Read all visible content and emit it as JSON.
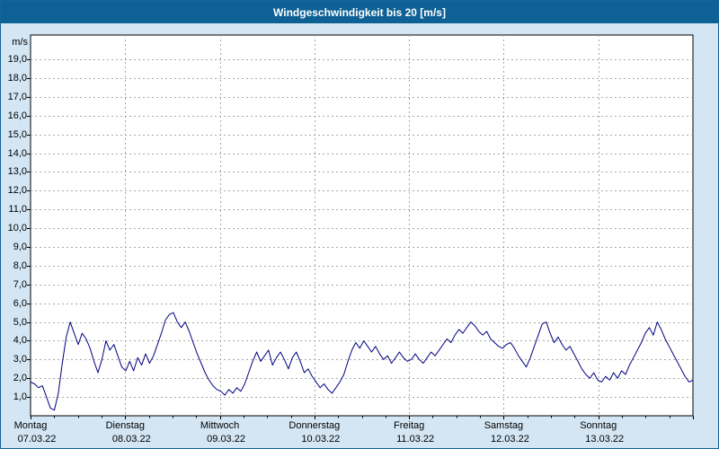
{
  "title": "Windgeschwindigkeit bis 20 [m/s]",
  "colors": {
    "titlebar_bg": "#0e6195",
    "page_bg": "#d4e6f4",
    "frame": "#17639b",
    "plot_bg": "#ffffff",
    "plot_border": "#000000",
    "grid": "#a3aaa3",
    "line": "#000080",
    "tick": "#000000"
  },
  "chart_data": {
    "type": "line",
    "title": "Windgeschwindigkeit bis 20 [m/s]",
    "ylabel": "m/s",
    "xlabel": "",
    "ylim": [
      0,
      20.3
    ],
    "grid": true,
    "legend": "none",
    "y_tick_labels": [
      "19,0",
      "18,0",
      "17,0",
      "16,0",
      "15,0",
      "14,0",
      "13,0",
      "12,0",
      "11,0",
      "10,0",
      "9,0",
      "8,0",
      "7,0",
      "6,0",
      "5,0",
      "4,0",
      "3,0",
      "2,0",
      "1,0"
    ],
    "days": [
      {
        "label": "Montag",
        "date": "07.03.22"
      },
      {
        "label": "Dienstag",
        "date": "08.03.22"
      },
      {
        "label": "Mittwoch",
        "date": "09.03.22"
      },
      {
        "label": "Donnerstag",
        "date": "10.03.22"
      },
      {
        "label": "Freitag",
        "date": "11.03.22"
      },
      {
        "label": "Samstag",
        "date": "12.03.22"
      },
      {
        "label": "Sonntag",
        "date": "13.03.22"
      }
    ],
    "sampling": "hourly",
    "series": [
      {
        "name": "Windgeschwindigkeit",
        "unit": "m/s",
        "values": [
          1.8,
          1.7,
          1.5,
          1.6,
          1.0,
          0.4,
          0.3,
          1.2,
          2.8,
          4.2,
          5.0,
          4.4,
          3.8,
          4.4,
          4.1,
          3.6,
          2.9,
          2.3,
          3.0,
          4.0,
          3.5,
          3.8,
          3.2,
          2.6,
          2.4,
          2.9,
          2.4,
          3.1,
          2.7,
          3.3,
          2.8,
          3.2,
          3.8,
          4.4,
          5.1,
          5.4,
          5.5,
          5.0,
          4.7,
          5.0,
          4.5,
          3.9,
          3.3,
          2.8,
          2.3,
          1.9,
          1.6,
          1.4,
          1.3,
          1.1,
          1.4,
          1.2,
          1.5,
          1.3,
          1.7,
          2.3,
          2.9,
          3.4,
          2.9,
          3.2,
          3.5,
          2.7,
          3.1,
          3.4,
          3.0,
          2.5,
          3.1,
          3.4,
          2.9,
          2.3,
          2.5,
          2.1,
          1.8,
          1.5,
          1.7,
          1.4,
          1.2,
          1.5,
          1.8,
          2.2,
          2.9,
          3.5,
          3.9,
          3.6,
          4.0,
          3.7,
          3.4,
          3.7,
          3.3,
          3.0,
          3.2,
          2.8,
          3.1,
          3.4,
          3.1,
          2.9,
          3.0,
          3.3,
          3.0,
          2.8,
          3.1,
          3.4,
          3.2,
          3.5,
          3.8,
          4.1,
          3.9,
          4.3,
          4.6,
          4.4,
          4.7,
          5.0,
          4.8,
          4.5,
          4.3,
          4.5,
          4.1,
          3.9,
          3.7,
          3.6,
          3.8,
          3.9,
          3.6,
          3.2,
          2.9,
          2.6,
          3.1,
          3.7,
          4.3,
          4.9,
          5.0,
          4.4,
          3.9,
          4.2,
          3.8,
          3.5,
          3.7,
          3.3,
          2.9,
          2.5,
          2.2,
          2.0,
          2.3,
          1.9,
          1.8,
          2.1,
          1.9,
          2.3,
          2.0,
          2.4,
          2.2,
          2.7,
          3.1,
          3.5,
          3.9,
          4.4,
          4.7,
          4.3,
          5.0,
          4.6,
          4.1,
          3.7,
          3.3,
          2.9,
          2.5,
          2.1,
          1.8,
          1.9
        ]
      }
    ]
  }
}
